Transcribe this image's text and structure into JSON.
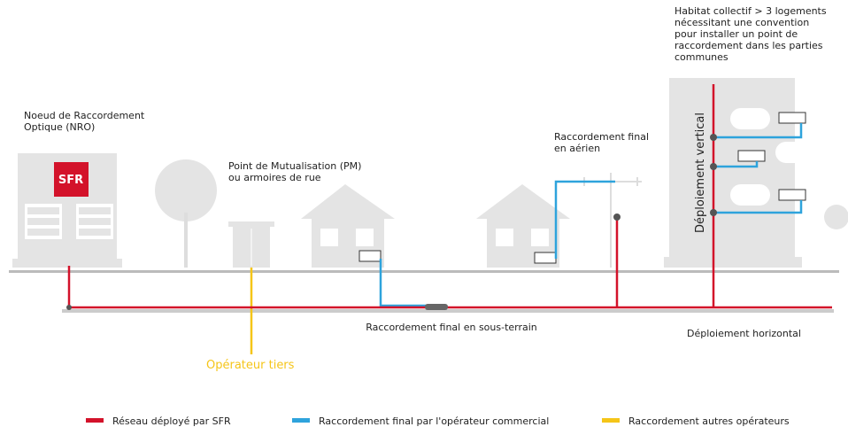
{
  "labels": {
    "habitat": [
      "Habitat collectif > 3 logements",
      "nécessitant une convention",
      "pour installer un point de",
      "raccordement dans les parties",
      "communes"
    ],
    "nro": [
      "Noeud de Raccordement",
      "Optique (NRO)"
    ],
    "sfr": "SFR",
    "pm": [
      "Point de Mutualisation (PM)",
      "ou armoires de rue"
    ],
    "aerien": [
      "Raccordement final",
      "en aérien"
    ],
    "vertical": "Déploiement vertical",
    "souterrain": "Raccordement final en sous-terrain",
    "horizontal": "Déploiement horizontal",
    "tiers": "Opérateur tiers"
  },
  "legend": [
    {
      "name": "Réseau déployé par SFR",
      "color": "#d3122a"
    },
    {
      "name": "Raccordement final par l'opérateur commercial",
      "color": "#2ea3dc"
    },
    {
      "name": "Raccordement autres opérateurs",
      "color": "#f5c518"
    }
  ]
}
